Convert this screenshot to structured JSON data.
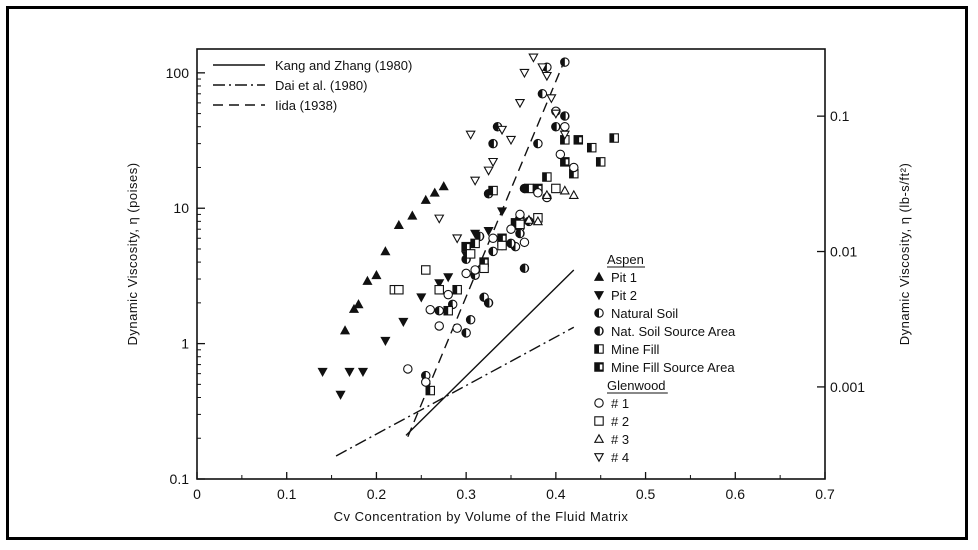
{
  "chart_data": {
    "type": "scatter",
    "xlabel": "Cv Concentration by Volume of the Fluid Matrix",
    "ylabel": "Dynamic Viscosity, η (poises)",
    "ylabel_right": "Dynamic Viscosity, η (lb-s/ft²)",
    "xlim": [
      0,
      0.7
    ],
    "ylim": [
      0.1,
      150
    ],
    "yscale": "log",
    "x_ticks": [
      {
        "value": 0,
        "label": "0"
      },
      {
        "value": 0.1,
        "label": "0.1"
      },
      {
        "value": 0.2,
        "label": "0.2"
      },
      {
        "value": 0.3,
        "label": "0.3"
      },
      {
        "value": 0.4,
        "label": "0.4"
      },
      {
        "value": 0.5,
        "label": "0.5"
      },
      {
        "value": 0.6,
        "label": "0.6"
      },
      {
        "value": 0.7,
        "label": "0.7"
      }
    ],
    "y_ticks": [
      {
        "value": 0.1,
        "label": "0.1"
      },
      {
        "value": 1,
        "label": "1"
      },
      {
        "value": 10,
        "label": "10"
      },
      {
        "value": 100,
        "label": "100"
      }
    ],
    "y_right_ticks": [
      {
        "value": 0.4788,
        "label": "0.001"
      },
      {
        "value": 4.788,
        "label": "0.01"
      },
      {
        "value": 47.88,
        "label": "0.1"
      }
    ],
    "lines": [
      {
        "name": "Kang and Zhang (1980)",
        "style": "solid",
        "points": [
          [
            0.233,
            0.21
          ],
          [
            0.42,
            3.5
          ]
        ]
      },
      {
        "name": "Dai et al. (1980)",
        "style": "dashdot",
        "points": [
          [
            0.155,
            0.148
          ],
          [
            0.42,
            1.32
          ]
        ]
      },
      {
        "name": "Iida (1938)",
        "style": "dashed",
        "points": [
          [
            0.235,
            0.205
          ],
          [
            0.41,
            125
          ]
        ]
      }
    ],
    "group_headers": [
      {
        "label": "Aspen",
        "before": 0
      },
      {
        "label": "Glenwood",
        "before": 6
      }
    ],
    "series": [
      {
        "name": "Pit 1",
        "marker": "triangle-up-filled",
        "points": [
          [
            0.165,
            1.25
          ],
          [
            0.175,
            1.8
          ],
          [
            0.18,
            1.95
          ],
          [
            0.19,
            2.9
          ],
          [
            0.2,
            3.2
          ],
          [
            0.21,
            4.8
          ],
          [
            0.225,
            7.5
          ],
          [
            0.24,
            8.8
          ],
          [
            0.255,
            11.5
          ],
          [
            0.265,
            13
          ],
          [
            0.275,
            14.5
          ]
        ]
      },
      {
        "name": "Pit 2",
        "marker": "triangle-down-filled",
        "points": [
          [
            0.14,
            0.62
          ],
          [
            0.16,
            0.42
          ],
          [
            0.17,
            0.62
          ],
          [
            0.185,
            0.62
          ],
          [
            0.21,
            1.05
          ],
          [
            0.23,
            1.45
          ],
          [
            0.25,
            2.2
          ],
          [
            0.27,
            2.8
          ],
          [
            0.28,
            3.1
          ],
          [
            0.3,
            4.5
          ],
          [
            0.31,
            6.5
          ],
          [
            0.325,
            6.8
          ],
          [
            0.34,
            9.5
          ]
        ]
      },
      {
        "name": "Natural Soil",
        "marker": "circle-half",
        "points": [
          [
            0.255,
            0.58
          ],
          [
            0.27,
            1.75
          ],
          [
            0.285,
            1.95
          ],
          [
            0.29,
            2.5
          ],
          [
            0.3,
            1.2
          ],
          [
            0.305,
            1.5
          ],
          [
            0.31,
            3.2
          ],
          [
            0.32,
            2.2
          ],
          [
            0.33,
            4.8
          ],
          [
            0.34,
            5.5
          ],
          [
            0.355,
            5.2
          ],
          [
            0.36,
            7.2
          ],
          [
            0.365,
            14
          ],
          [
            0.38,
            30
          ],
          [
            0.385,
            70
          ],
          [
            0.39,
            110
          ],
          [
            0.41,
            120
          ]
        ]
      },
      {
        "name": "Nat. Soil Source Area",
        "marker": "circle-half-alt",
        "points": [
          [
            0.3,
            4.2
          ],
          [
            0.315,
            6.2
          ],
          [
            0.325,
            12.8
          ],
          [
            0.33,
            30
          ],
          [
            0.335,
            40
          ],
          [
            0.35,
            5.5
          ],
          [
            0.36,
            6.5
          ],
          [
            0.365,
            3.6
          ],
          [
            0.37,
            8
          ],
          [
            0.4,
            40
          ],
          [
            0.41,
            48
          ],
          [
            0.325,
            2
          ]
        ]
      },
      {
        "name": "Mine Fill",
        "marker": "square-half",
        "points": [
          [
            0.26,
            0.45
          ],
          [
            0.28,
            1.75
          ],
          [
            0.29,
            2.5
          ],
          [
            0.31,
            5.5
          ],
          [
            0.33,
            13.5
          ],
          [
            0.355,
            7.8
          ],
          [
            0.37,
            14
          ],
          [
            0.39,
            17
          ],
          [
            0.41,
            32
          ],
          [
            0.42,
            18
          ],
          [
            0.44,
            28
          ],
          [
            0.45,
            22
          ],
          [
            0.465,
            33
          ]
        ]
      },
      {
        "name": "Mine Fill Source Area",
        "marker": "square-half-alt",
        "points": [
          [
            0.3,
            5.2
          ],
          [
            0.32,
            4
          ],
          [
            0.34,
            6
          ],
          [
            0.36,
            8
          ],
          [
            0.38,
            14
          ],
          [
            0.41,
            22
          ],
          [
            0.425,
            32
          ]
        ]
      },
      {
        "name": "# 1",
        "marker": "circle-open",
        "points": [
          [
            0.235,
            0.65
          ],
          [
            0.255,
            0.52
          ],
          [
            0.26,
            1.78
          ],
          [
            0.27,
            1.35
          ],
          [
            0.28,
            2.3
          ],
          [
            0.29,
            1.3
          ],
          [
            0.3,
            3.3
          ],
          [
            0.31,
            3.5
          ],
          [
            0.33,
            6
          ],
          [
            0.34,
            5.3
          ],
          [
            0.35,
            7
          ],
          [
            0.36,
            9
          ],
          [
            0.365,
            5.6
          ],
          [
            0.38,
            13
          ],
          [
            0.39,
            12
          ],
          [
            0.4,
            52
          ],
          [
            0.405,
            25
          ],
          [
            0.41,
            40
          ],
          [
            0.42,
            20
          ]
        ]
      },
      {
        "name": "# 2",
        "marker": "square-open",
        "points": [
          [
            0.22,
            2.5
          ],
          [
            0.225,
            2.5
          ],
          [
            0.255,
            3.5
          ],
          [
            0.27,
            2.5
          ],
          [
            0.305,
            4.6
          ],
          [
            0.32,
            3.6
          ],
          [
            0.34,
            5.3
          ],
          [
            0.36,
            7.6
          ],
          [
            0.38,
            8.5
          ],
          [
            0.4,
            14
          ]
        ]
      },
      {
        "name": "# 3",
        "marker": "triangle-up-open",
        "points": [
          [
            0.39,
            12.5
          ],
          [
            0.41,
            13.5
          ],
          [
            0.42,
            12.5
          ],
          [
            0.37,
            8.2
          ],
          [
            0.38,
            8
          ]
        ]
      },
      {
        "name": "# 4",
        "marker": "triangle-down-open",
        "points": [
          [
            0.27,
            8.4
          ],
          [
            0.29,
            6
          ],
          [
            0.31,
            16
          ],
          [
            0.325,
            19
          ],
          [
            0.33,
            22
          ],
          [
            0.34,
            38
          ],
          [
            0.35,
            32
          ],
          [
            0.36,
            60
          ],
          [
            0.365,
            100
          ],
          [
            0.375,
            130
          ],
          [
            0.385,
            110
          ],
          [
            0.39,
            95
          ],
          [
            0.395,
            65
          ],
          [
            0.4,
            50
          ],
          [
            0.41,
            35
          ],
          [
            0.305,
            35
          ]
        ]
      }
    ]
  }
}
